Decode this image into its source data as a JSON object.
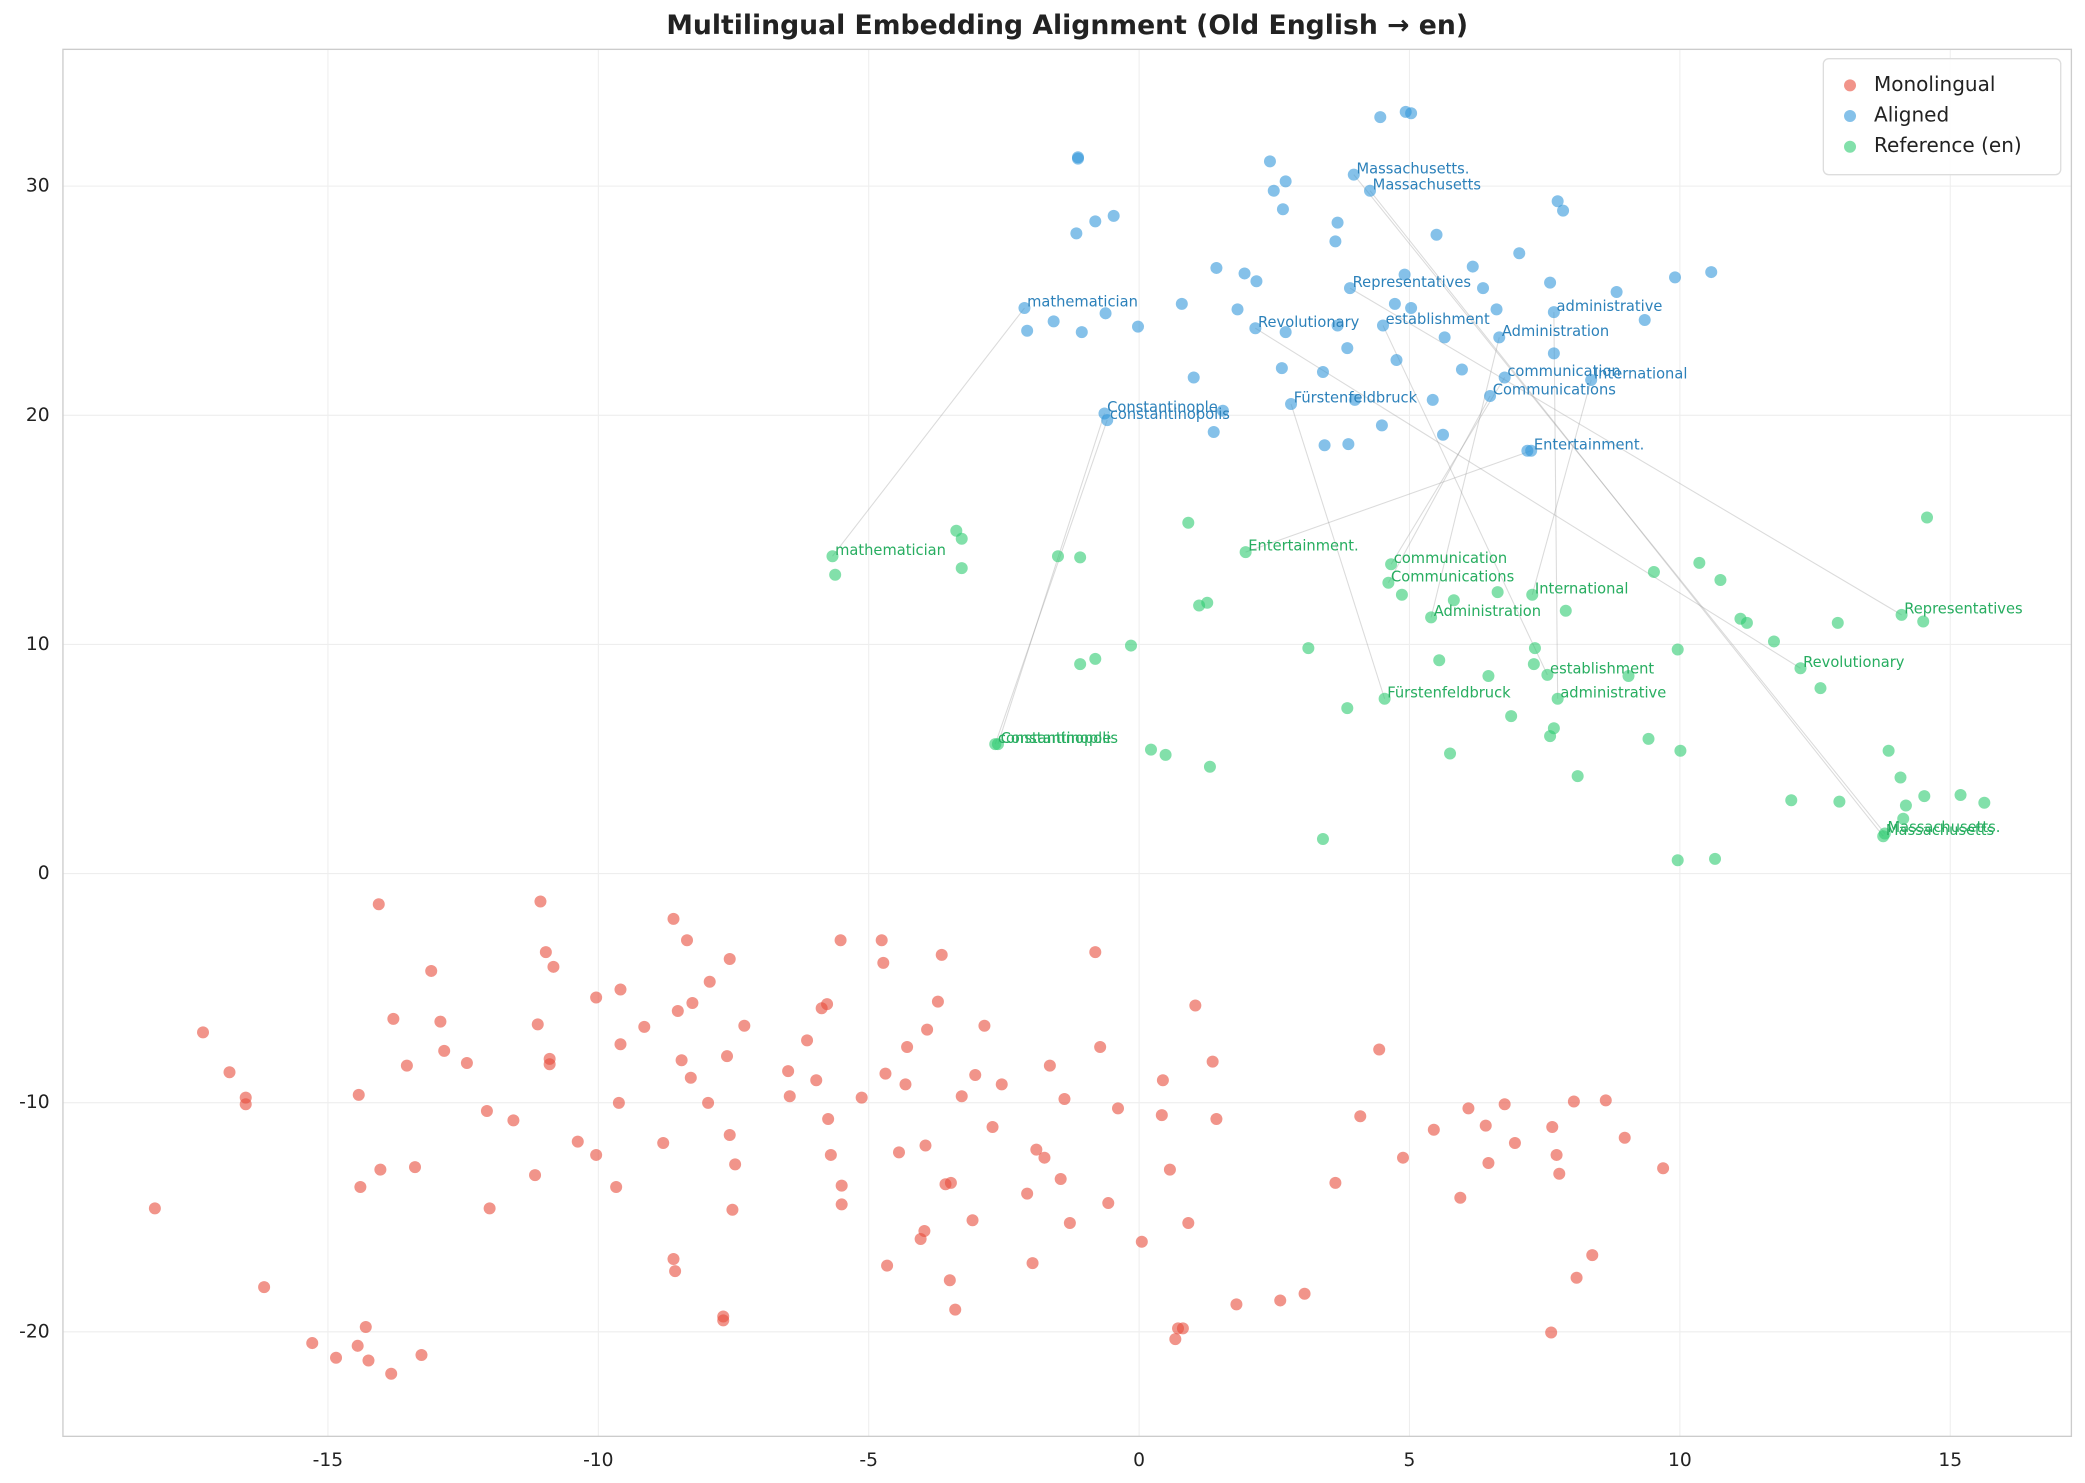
{
  "chart_data": {
    "type": "scatter",
    "title": "Multilingual Embedding Alignment (Old English → en)",
    "xlim": [
      -19.9,
      17.24
    ],
    "ylim": [
      -24.56,
      35.97
    ],
    "xticks": [
      -15,
      -10,
      -5,
      0,
      5,
      10,
      15
    ],
    "yticks": [
      -20,
      -10,
      0,
      10,
      20,
      30
    ],
    "grid": true,
    "legend": "upper right",
    "series": [
      {
        "name": "Monolingual",
        "color": "#e74c3c",
        "x": [
          -18.2,
          -17.31,
          -16.82,
          -16.52,
          -16.52,
          -16.18,
          -15.29,
          -14.85,
          -14.45,
          -14.3,
          -14.25,
          -13.83,
          -13.27,
          -14.43,
          -14.4,
          -14.03,
          -13.39,
          -14.06,
          -13.79,
          -13.54,
          -13.09,
          -12.92,
          -12.85,
          -12.43,
          -12.06,
          -11.57,
          -12.01,
          -11.17,
          -11.12,
          -11.07,
          -10.97,
          -10.9,
          -10.9,
          -10.83,
          -10.38,
          -10.04,
          -10.04,
          -9.67,
          -9.59,
          -9.62,
          -9.59,
          -9.15,
          -8.8,
          -8.61,
          -8.53,
          -8.46,
          -8.36,
          -8.29,
          -8.26,
          -7.97,
          -7.94,
          -7.62,
          -7.57,
          -7.57,
          -7.52,
          -7.47,
          -7.3,
          -7.69,
          -7.69,
          -8.61,
          -8.58,
          -6.49,
          -6.46,
          -6.14,
          -5.97,
          -5.87,
          -5.77,
          -5.75,
          -5.7,
          -5.52,
          -5.5,
          -5.5,
          -5.13,
          -4.76,
          -4.73,
          -4.69,
          -4.66,
          -4.44,
          -4.32,
          -4.29,
          -4.04,
          -3.97,
          -3.95,
          -3.92,
          -3.65,
          -3.72,
          -3.58,
          -3.5,
          -3.48,
          -3.4,
          -3.28,
          -3.08,
          -3.03,
          -2.86,
          -2.71,
          -2.54,
          -2.07,
          -1.97,
          -1.9,
          -1.75,
          -1.65,
          -1.45,
          -1.38,
          -1.28,
          -0.81,
          -0.72,
          -0.57,
          -0.39,
          0.05,
          0.42,
          0.44,
          0.57,
          0.72,
          0.81,
          0.67,
          0.91,
          1.04,
          1.36,
          1.43,
          1.8,
          2.61,
          3.06,
          3.63,
          4.09,
          4.44,
          4.88,
          5.45,
          5.94,
          6.09,
          6.41,
          6.46,
          6.76,
          6.95,
          7.64,
          7.72,
          7.77,
          8.04,
          8.09,
          8.38,
          8.63,
          8.98,
          9.69,
          7.62
        ],
        "y": [
          -14.61,
          -6.93,
          -8.67,
          -9.78,
          -10.07,
          -18.05,
          -20.49,
          -21.13,
          -20.61,
          -19.79,
          -21.25,
          -21.83,
          -21.01,
          -9.66,
          -13.68,
          -12.92,
          -12.81,
          -1.34,
          -6.34,
          -8.38,
          -4.25,
          -6.46,
          -7.74,
          -8.27,
          -10.36,
          -10.77,
          -14.61,
          -13.16,
          -6.58,
          -1.22,
          -3.43,
          -8.09,
          -8.32,
          -4.07,
          -11.7,
          -5.41,
          -12.28,
          -13.68,
          -5.06,
          -10.01,
          -7.45,
          -6.69,
          -11.76,
          -1.98,
          -6.0,
          -8.15,
          -2.91,
          -8.91,
          -5.65,
          -10.01,
          -4.72,
          -7.97,
          -3.73,
          -11.41,
          -14.67,
          -12.69,
          -6.64,
          -19.33,
          -19.5,
          -16.82,
          -17.35,
          -8.62,
          -9.72,
          -7.28,
          -9.02,
          -5.88,
          -5.7,
          -10.71,
          -12.28,
          -2.91,
          -13.62,
          -14.44,
          -9.78,
          -2.91,
          -3.9,
          -8.73,
          -17.11,
          -12.17,
          -9.2,
          -7.57,
          -15.95,
          -15.6,
          -11.87,
          -6.81,
          -3.55,
          -5.59,
          -13.56,
          -17.75,
          -13.5,
          -19.03,
          -9.72,
          -15.13,
          -8.79,
          -6.64,
          -11.06,
          -9.2,
          -13.97,
          -17.0,
          -12.05,
          -12.4,
          -8.38,
          -13.33,
          -9.84,
          -15.25,
          -3.43,
          -7.57,
          -14.38,
          -10.25,
          -16.07,
          -10.54,
          -9.02,
          -12.92,
          -19.85,
          -19.85,
          -20.32,
          -15.25,
          -5.76,
          -8.21,
          -10.71,
          -18.8,
          -18.63,
          -18.34,
          -13.5,
          -10.59,
          -7.68,
          -12.4,
          -11.18,
          -14.15,
          -10.25,
          -11.0,
          -12.63,
          -10.07,
          -11.76,
          -11.06,
          -12.28,
          -13.1,
          -9.95,
          -17.64,
          -16.65,
          -9.9,
          -11.53,
          -12.86,
          -20.03
        ]
      },
      {
        "name": "Aligned",
        "color": "#3498db",
        "x": [
          -2.12,
          3.97,
          4.27,
          3.9,
          2.15,
          4.51,
          7.67,
          6.66,
          6.76,
          8.36,
          6.49,
          -0.64,
          -0.59,
          2.81,
          7.25,
          -1.13,
          -1.13,
          -0.47,
          -0.81,
          -1.16,
          2.42,
          2.71,
          2.49,
          2.66,
          4.46,
          4.93,
          5.03,
          3.67,
          3.63,
          5.5,
          7.03,
          7.74,
          7.84,
          4.91,
          6.17,
          6.36,
          5.03,
          4.73,
          6.61,
          7.6,
          8.83,
          9.91,
          10.58,
          9.35,
          1.43,
          1.95,
          2.17,
          0.79,
          1.82,
          -0.62,
          -1.58,
          -0.02,
          -1.06,
          -2.07,
          2.71,
          3.67,
          3.85,
          4.76,
          5.65,
          5.97,
          7.67,
          2.64,
          3.4,
          1.01,
          5.43,
          4.49,
          3.43,
          3.87,
          5.62,
          1.38,
          1.55,
          3.99,
          7.18
        ],
        "y": [
          24.68,
          30.5,
          29.8,
          25.55,
          23.8,
          23.92,
          24.5,
          23.4,
          21.65,
          21.54,
          20.84,
          20.08,
          19.79,
          20.49,
          18.45,
          31.26,
          31.2,
          28.7,
          28.46,
          27.94,
          31.08,
          30.21,
          29.8,
          28.99,
          33.01,
          33.24,
          33.18,
          28.41,
          27.59,
          27.88,
          27.07,
          29.34,
          28.93,
          26.14,
          26.49,
          25.55,
          24.68,
          24.86,
          24.62,
          25.79,
          25.38,
          26.02,
          26.25,
          24.16,
          26.43,
          26.19,
          25.85,
          24.86,
          24.62,
          24.45,
          24.1,
          23.87,
          23.63,
          23.69,
          23.63,
          23.92,
          22.93,
          22.41,
          23.4,
          22.0,
          22.7,
          22.06,
          21.89,
          21.65,
          20.67,
          19.56,
          18.69,
          18.74,
          19.15,
          19.27,
          20.2,
          20.67,
          18.45
        ],
        "labels": [
          "mathematician",
          "Massachusetts.",
          "Massachusetts",
          "Representatives",
          "Revolutionary",
          "establishment",
          "administrative",
          "Administration",
          "communication",
          "International",
          "Communications",
          "Constantinople",
          "constantinopolis",
          "Fürstenfeldbruck",
          "Entertainment.",
          null,
          null,
          null,
          null,
          null,
          null,
          null,
          null,
          null,
          null,
          null,
          null,
          null,
          null,
          null,
          null,
          null,
          null,
          null,
          null,
          null,
          null,
          null,
          null,
          null,
          null,
          null,
          null,
          null,
          null,
          null,
          null,
          null,
          null,
          null,
          null,
          null,
          null,
          null,
          null,
          null,
          null,
          null,
          null,
          null,
          null,
          null,
          null,
          null,
          null,
          null,
          null,
          null,
          null,
          null,
          null,
          null,
          null
        ]
      },
      {
        "name": "Reference (en)",
        "color": "#2ecc71",
        "x": [
          -5.67,
          13.79,
          13.76,
          14.1,
          12.23,
          7.55,
          7.74,
          5.4,
          4.66,
          7.27,
          4.61,
          -2.61,
          -2.66,
          4.54,
          1.97,
          -5.62,
          -3.38,
          -3.28,
          -3.28,
          -1.5,
          -1.09,
          0.91,
          1.11,
          1.26,
          3.13,
          -0.15,
          -1.09,
          -0.81,
          0.22,
          0.49,
          1.31,
          3.4,
          3.85,
          4.86,
          5.55,
          5.82,
          5.75,
          6.46,
          6.88,
          6.63,
          7.32,
          7.3,
          7.6,
          7.67,
          7.89,
          8.11,
          9.05,
          9.42,
          9.52,
          9.96,
          10.01,
          9.96,
          10.36,
          10.75,
          11.12,
          11.24,
          11.74,
          12.6,
          12.92,
          12.06,
          12.95,
          13.86,
          14.08,
          14.13,
          14.18,
          14.5,
          14.57,
          14.52,
          15.19,
          15.63,
          10.65
        ],
        "y": [
          13.85,
          1.75,
          1.63,
          11.29,
          8.96,
          8.67,
          7.63,
          11.18,
          13.5,
          12.17,
          12.69,
          5.65,
          5.65,
          7.63,
          14.03,
          13.04,
          14.96,
          14.61,
          13.33,
          13.85,
          13.8,
          15.31,
          11.7,
          11.82,
          9.84,
          9.95,
          9.14,
          9.37,
          5.41,
          5.18,
          4.66,
          1.51,
          7.22,
          12.17,
          9.31,
          11.93,
          5.24,
          8.62,
          6.87,
          12.28,
          9.84,
          9.14,
          6.0,
          6.34,
          11.47,
          4.25,
          8.62,
          5.88,
          13.16,
          9.78,
          5.36,
          0.58,
          13.56,
          12.81,
          11.12,
          10.94,
          10.13,
          8.09,
          10.94,
          3.2,
          3.14,
          5.36,
          4.19,
          2.39,
          2.97,
          11.0,
          15.54,
          3.38,
          3.43,
          3.09,
          0.64
        ],
        "labels": [
          "mathematician",
          "Massachusetts.",
          "Massachusetts",
          "Representatives",
          "Revolutionary",
          "establishment",
          "administrative",
          "Administration",
          "communication",
          "International",
          "Communications",
          "Constantinople",
          "constantinopolis",
          "Fürstenfeldbruck",
          "Entertainment.",
          null,
          null,
          null,
          null,
          null,
          null,
          null,
          null,
          null,
          null,
          null,
          null,
          null,
          null,
          null,
          null,
          null,
          null,
          null,
          null,
          null,
          null,
          null,
          null,
          null,
          null,
          null,
          null,
          null,
          null,
          null,
          null,
          null,
          null,
          null,
          null,
          null,
          null,
          null,
          null,
          null,
          null,
          null,
          null,
          null,
          null,
          null,
          null,
          null,
          null,
          null,
          null,
          null,
          null,
          null,
          null
        ]
      }
    ]
  }
}
